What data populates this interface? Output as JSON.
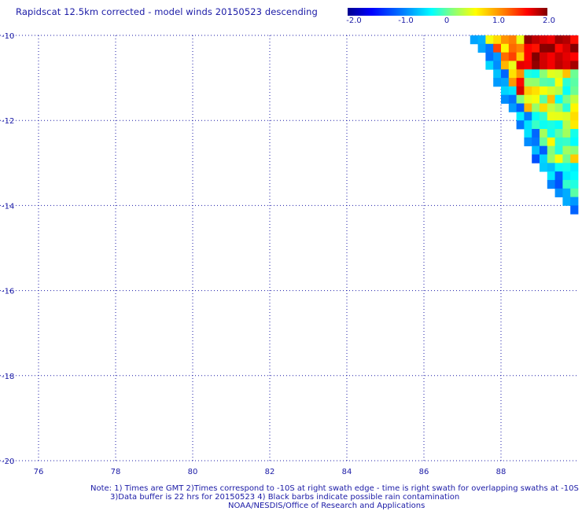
{
  "title": "Rapidscat 12.5km corrected - model winds 20150523 descending",
  "colorbar": {
    "tick_labels": [
      "-2.0",
      "-1.0",
      "0",
      "1.0",
      "2.0"
    ],
    "tick_values": [
      -2.0,
      -1.0,
      0.0,
      1.0,
      2.0
    ],
    "range": [
      -2.0,
      2.0
    ],
    "colors": [
      "#00008f",
      "#0000ff",
      "#0080ff",
      "#00ffff",
      "#80ff80",
      "#ffff00",
      "#ff8000",
      "#ff0000",
      "#800000"
    ]
  },
  "chart_data": {
    "type": "heatmap",
    "title": "Rapidscat 12.5km corrected - model winds 20150523 descending",
    "x_ticks": [
      76,
      78,
      80,
      82,
      84,
      86,
      88
    ],
    "y_ticks": [
      -10,
      -12,
      -14,
      -16,
      -18,
      -20
    ],
    "y_tick_labels": [
      "-10",
      "-12",
      "-14",
      "-16",
      "-18",
      "-20"
    ],
    "xlim": [
      75,
      90
    ],
    "ylim": [
      -20,
      -10
    ],
    "grid": true,
    "cell_size_deg": 0.2,
    "swath_rows": [
      {
        "lat": -10.1,
        "lon_start": 87.2,
        "lon_end": 90.0
      },
      {
        "lat": -10.3,
        "lon_start": 87.4,
        "lon_end": 90.0
      },
      {
        "lat": -10.5,
        "lon_start": 87.6,
        "lon_end": 90.0
      },
      {
        "lat": -10.7,
        "lon_start": 87.6,
        "lon_end": 90.0
      },
      {
        "lat": -10.9,
        "lon_start": 87.8,
        "lon_end": 90.0
      },
      {
        "lat": -11.1,
        "lon_start": 87.8,
        "lon_end": 90.0
      },
      {
        "lat": -11.3,
        "lon_start": 88.0,
        "lon_end": 90.0
      },
      {
        "lat": -11.5,
        "lon_start": 88.0,
        "lon_end": 90.0
      },
      {
        "lat": -11.7,
        "lon_start": 88.2,
        "lon_end": 90.0
      },
      {
        "lat": -11.9,
        "lon_start": 88.4,
        "lon_end": 90.0
      },
      {
        "lat": -12.1,
        "lon_start": 88.4,
        "lon_end": 90.0
      },
      {
        "lat": -12.3,
        "lon_start": 88.6,
        "lon_end": 90.0
      },
      {
        "lat": -12.5,
        "lon_start": 88.6,
        "lon_end": 90.0
      },
      {
        "lat": -12.7,
        "lon_start": 88.8,
        "lon_end": 90.0
      },
      {
        "lat": -12.9,
        "lon_start": 88.8,
        "lon_end": 90.0
      },
      {
        "lat": -13.1,
        "lon_start": 89.0,
        "lon_end": 90.0
      },
      {
        "lat": -13.3,
        "lon_start": 89.2,
        "lon_end": 90.0
      },
      {
        "lat": -13.5,
        "lon_start": 89.2,
        "lon_end": 90.0
      },
      {
        "lat": -13.7,
        "lon_start": 89.4,
        "lon_end": 90.0
      },
      {
        "lat": -13.9,
        "lon_start": 89.6,
        "lon_end": 90.0
      },
      {
        "lat": -14.1,
        "lon_start": 89.8,
        "lon_end": 90.0
      }
    ]
  },
  "footer": {
    "line1": "Note: 1) Times are GMT 2)Times correspond to -10S at right swath edge - time is right swath for overlapping swaths at -10S",
    "line2": "3)Data buffer is 22 hrs for 20150523 4) Black barbs indicate possible rain contamination",
    "line3": "NOAA/NESDIS/Office of Research and Applications"
  }
}
